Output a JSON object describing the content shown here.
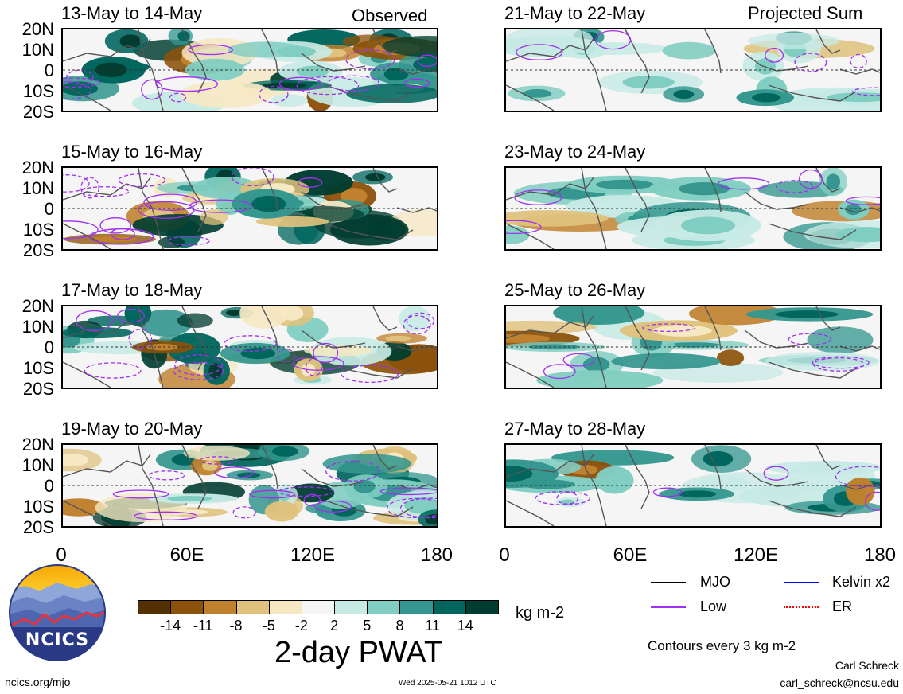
{
  "header": {
    "left_label": "Observed",
    "right_label": "Projected Sum"
  },
  "panels": [
    {
      "title": "13-May to 14-May",
      "column": "left"
    },
    {
      "title": "15-May to 16-May",
      "column": "left"
    },
    {
      "title": "17-May to 18-May",
      "column": "left"
    },
    {
      "title": "19-May to 20-May",
      "column": "left"
    },
    {
      "title": "21-May to 22-May",
      "column": "right"
    },
    {
      "title": "23-May to 24-May",
      "column": "right"
    },
    {
      "title": "25-May to 26-May",
      "column": "right"
    },
    {
      "title": "27-May to 28-May",
      "column": "right"
    }
  ],
  "y_ticks": [
    "20N",
    "10N",
    "0",
    "10S",
    "20S"
  ],
  "x_ticks": [
    "0",
    "60E",
    "120E",
    "180"
  ],
  "colorbar": {
    "colors": [
      "#543005",
      "#8c510a",
      "#bf812d",
      "#dfc27d",
      "#f6e8c3",
      "#f5f5f5",
      "#c7eae5",
      "#80cdc1",
      "#35978f",
      "#01665e",
      "#003c30"
    ],
    "labels": [
      "-14",
      "-11",
      "-8",
      "-5",
      "-2",
      "2",
      "5",
      "8",
      "11",
      "14"
    ],
    "units": "kg m-2",
    "title": "2-day PWAT"
  },
  "legend": [
    {
      "label": "MJO",
      "color": "#000000"
    },
    {
      "label": "Kelvin x2",
      "color": "#0000ff"
    },
    {
      "label": "Low",
      "color": "#a030f0"
    },
    {
      "label": "ER",
      "color": "#ff0000"
    }
  ],
  "contour_note": "Contours every 3 kg m-2",
  "logo_text": "NCICS",
  "footer": {
    "url": "ncics.org/mjo",
    "timestamp": "Wed 2025-05-21 1012 UTC",
    "author": "Carl Schreck",
    "email": "carl_schreck@ncsu.edu"
  }
}
